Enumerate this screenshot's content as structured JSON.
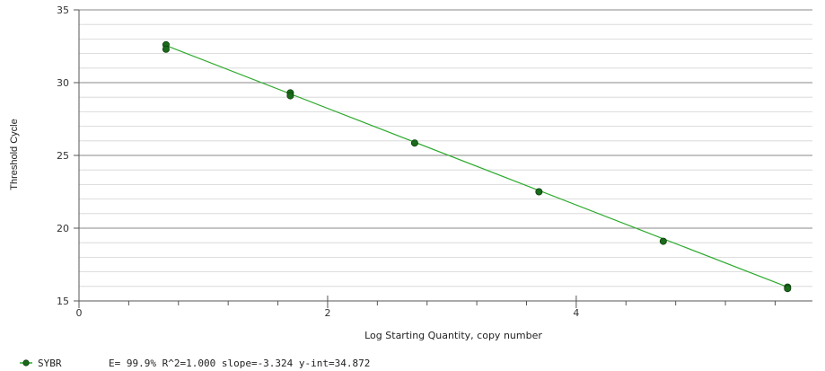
{
  "chart_data": {
    "type": "scatter",
    "xlabel": "Log Starting Quantity, copy number",
    "ylabel": "Threshold Cycle",
    "xlim": [
      0,
      5.9
    ],
    "ylim": [
      15,
      35
    ],
    "x_ticks": [
      0,
      2,
      4
    ],
    "y_ticks": [
      15,
      20,
      25,
      30,
      35
    ],
    "x_minor_step": 0.4,
    "y_minor_step": 1,
    "grid": "horizontal",
    "legend_position": "bottom-left",
    "series": [
      {
        "name": "SYBR",
        "color": "#1a6b1a",
        "points": [
          {
            "x": 0.7,
            "y": 32.6
          },
          {
            "x": 0.7,
            "y": 32.3
          },
          {
            "x": 1.7,
            "y": 29.3
          },
          {
            "x": 1.7,
            "y": 29.1
          },
          {
            "x": 2.7,
            "y": 25.85
          },
          {
            "x": 3.7,
            "y": 22.5
          },
          {
            "x": 4.7,
            "y": 19.1
          },
          {
            "x": 5.7,
            "y": 15.95
          },
          {
            "x": 5.7,
            "y": 15.85
          }
        ]
      }
    ],
    "fit_line": {
      "color": "#2eaa2e",
      "x0": 0.7,
      "y0": 32.55,
      "x1": 5.7,
      "y1": 15.95
    },
    "legend": {
      "label": "SYBR",
      "stats": "E= 99.9% R^2=1.000 slope=-3.324 y-int=34.872"
    }
  }
}
